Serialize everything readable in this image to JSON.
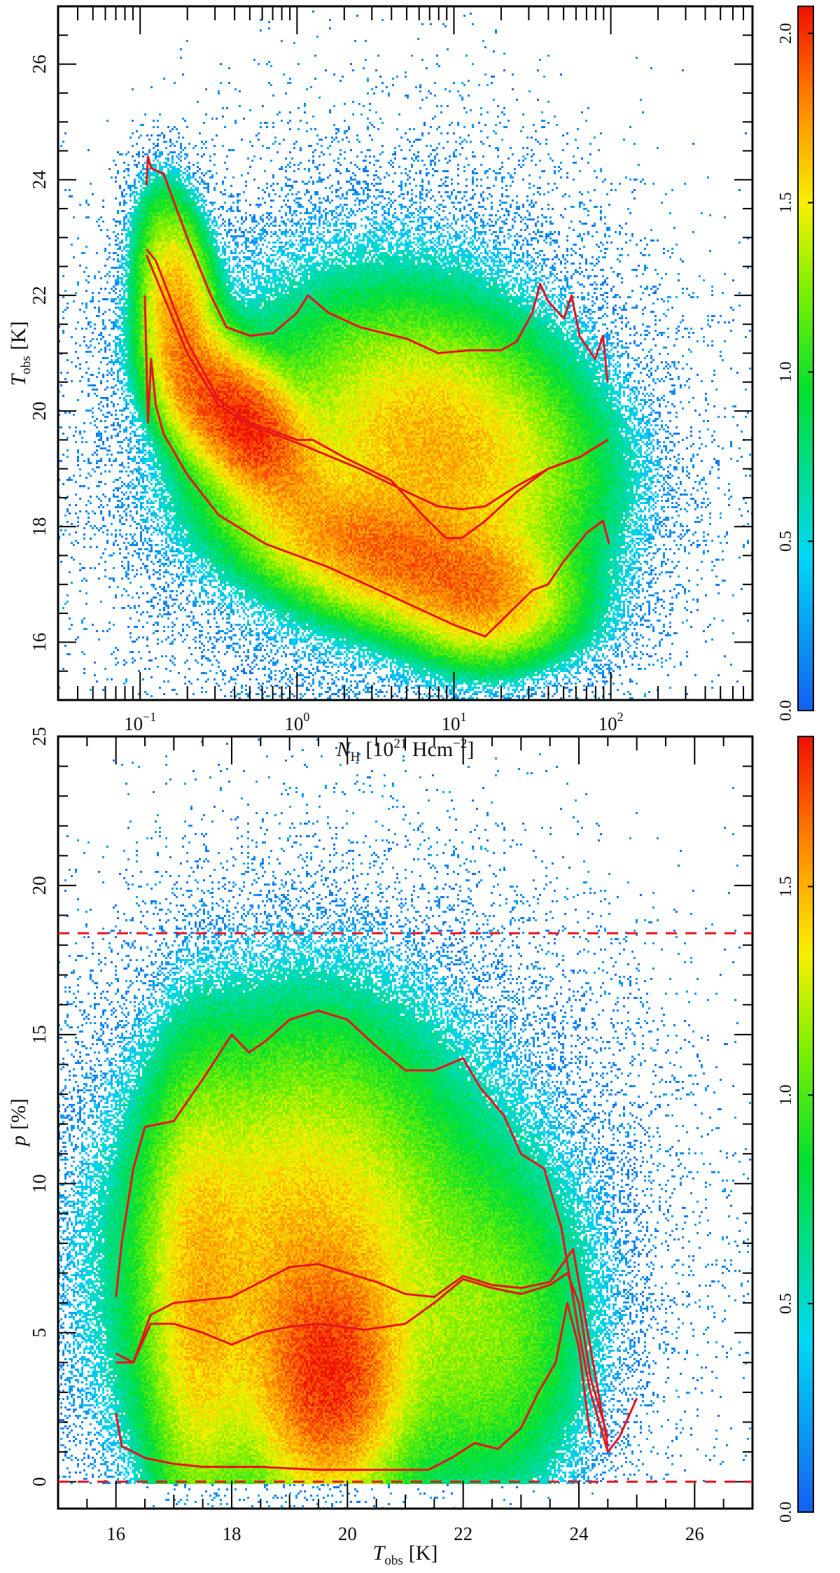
{
  "chart_data": [
    {
      "type": "heatmap",
      "title": "",
      "xscale": "log",
      "xlim": [
        0.03,
        800
      ],
      "ylim": [
        15,
        27
      ],
      "xlabel": {
        "symbol": "N",
        "sub": "H",
        "unit_pre": "[10",
        "unit_sup": "21",
        "unit_mid": " Hcm",
        "unit_sup2": "−2",
        "unit_post": "]"
      },
      "ylabel": {
        "symbol": "T",
        "sub": "obs",
        "unit": "[K]"
      },
      "xticks": [
        {
          "value": 0.1,
          "base": "10",
          "exp": "−1"
        },
        {
          "value": 1,
          "base": "10",
          "exp": "0"
        },
        {
          "value": 10,
          "base": "10",
          "exp": "1"
        },
        {
          "value": 100,
          "base": "10",
          "exp": "2"
        }
      ],
      "yticks": [
        "16",
        "18",
        "20",
        "22",
        "24",
        "26"
      ],
      "colorbar": {
        "range": [
          0,
          2.08
        ],
        "ticks": [
          "0.0",
          "0.5",
          "1.0",
          "1.5",
          "2.0"
        ]
      },
      "density_components_log10x": [
        {
          "x": -0.35,
          "y": 19.8,
          "sx": 0.25,
          "sy": 0.75,
          "rho": -0.55,
          "w": 1.0
        },
        {
          "x": 0.6,
          "y": 17.5,
          "sx": 0.5,
          "sy": 0.7,
          "rho": -0.5,
          "w": 0.55
        },
        {
          "x": -0.75,
          "y": 21.6,
          "sx": 0.13,
          "sy": 1.0,
          "rho": -0.3,
          "w": 0.45
        },
        {
          "x": 0.9,
          "y": 19.3,
          "sx": 0.5,
          "sy": 1.2,
          "rho": -0.2,
          "w": 0.35
        },
        {
          "x": 1.2,
          "y": 16.8,
          "sx": 0.25,
          "sy": 0.6,
          "rho": 0.0,
          "w": 0.3
        },
        {
          "x": 0.5,
          "y": 19.5,
          "sx": 0.8,
          "sy": 2.2,
          "rho": 0.0,
          "w": 0.04
        }
      ],
      "curves": [
        {
          "name": "upper-percentile",
          "log10x": [
            -0.96,
            -0.95,
            -0.93,
            -0.85,
            -0.7,
            -0.55,
            -0.45,
            -0.3,
            -0.15,
            0,
            0.07,
            0.2,
            0.4,
            0.7,
            0.9,
            1.1,
            1.3,
            1.4,
            1.5,
            1.55,
            1.6,
            1.7,
            1.75,
            1.8,
            1.9,
            1.95,
            1.98
          ],
          "y": [
            23.9,
            24.4,
            24.2,
            24.1,
            23.0,
            22.0,
            21.45,
            21.3,
            21.35,
            21.7,
            22.0,
            21.7,
            21.45,
            21.25,
            21.0,
            21.05,
            21.05,
            21.2,
            21.7,
            22.2,
            21.9,
            21.6,
            22.0,
            21.3,
            20.9,
            21.3,
            20.5
          ]
        },
        {
          "name": "median",
          "log10x": [
            -0.96,
            -0.9,
            -0.7,
            -0.5,
            -0.3,
            0,
            0.1,
            0.3,
            0.6,
            0.8,
            0.95,
            1.05,
            1.2,
            1.4,
            1.6,
            1.8,
            1.98
          ],
          "y": [
            22.8,
            22.6,
            21.2,
            20.2,
            19.8,
            19.5,
            19.5,
            19.2,
            18.8,
            18.2,
            17.8,
            17.8,
            18.1,
            18.6,
            19.0,
            19.2,
            19.5
          ]
        },
        {
          "name": "mean",
          "log10x": [
            -0.96,
            -0.7,
            -0.5,
            -0.3,
            0,
            0.4,
            0.7,
            0.9,
            1.05,
            1.2,
            1.4,
            1.6,
            1.8,
            1.98
          ],
          "y": [
            22.7,
            21.0,
            20.1,
            19.75,
            19.45,
            19.0,
            18.6,
            18.35,
            18.3,
            18.35,
            18.7,
            19.0,
            19.2,
            19.5
          ]
        },
        {
          "name": "lower-percentile",
          "log10x": [
            -0.97,
            -0.95,
            -0.93,
            -0.9,
            -0.85,
            -0.7,
            -0.5,
            -0.2,
            0.2,
            0.6,
            1.0,
            1.2,
            1.35,
            1.5,
            1.6,
            1.7,
            1.85,
            1.95,
            1.99
          ],
          "y": [
            22.0,
            19.8,
            20.9,
            20.1,
            19.6,
            18.9,
            18.2,
            17.7,
            17.3,
            16.8,
            16.3,
            16.1,
            16.5,
            16.9,
            17.0,
            17.4,
            17.9,
            18.1,
            17.7
          ]
        }
      ],
      "reference_lines": []
    },
    {
      "type": "heatmap",
      "title": "",
      "xscale": "linear",
      "xlim": [
        15,
        27
      ],
      "ylim": [
        -0.9,
        25
      ],
      "xlabel": {
        "symbol": "T",
        "sub": "obs",
        "unit": "[K]"
      },
      "ylabel": {
        "symbol": "p",
        "unit": "[%]"
      },
      "xticks": [
        "16",
        "18",
        "20",
        "22",
        "24",
        "26"
      ],
      "yticks": [
        "0",
        "5",
        "10",
        "15",
        "20",
        "25"
      ],
      "colorbar": {
        "range": [
          0,
          1.86
        ],
        "ticks": [
          "0.0",
          "0.5",
          "1.0",
          "1.5"
        ]
      },
      "density_components": [
        {
          "x": 19.7,
          "y": 3.5,
          "sx": 0.6,
          "sy": 2.0,
          "rho": 0.0,
          "w": 1.0
        },
        {
          "x": 19.2,
          "y": 7.0,
          "sx": 1.4,
          "sy": 4.0,
          "rho": 0.0,
          "w": 0.45
        },
        {
          "x": 17.4,
          "y": 6.0,
          "sx": 0.45,
          "sy": 4.0,
          "rho": 0.0,
          "w": 0.3
        },
        {
          "x": 22.5,
          "y": 5.0,
          "sx": 0.9,
          "sy": 3.0,
          "rho": 0.0,
          "w": 0.12
        },
        {
          "x": 20.0,
          "y": 8.0,
          "sx": 2.5,
          "sy": 5.5,
          "rho": 0.0,
          "w": 0.035
        }
      ],
      "curves": [
        {
          "name": "upper-percentile",
          "x": [
            16.0,
            16.1,
            16.3,
            16.5,
            17,
            17.5,
            18,
            18.3,
            18.6,
            19,
            19.5,
            20,
            20.5,
            21,
            21.5,
            22,
            22.3,
            22.7,
            23,
            23.4,
            23.7,
            24,
            24.2,
            24.5,
            24.7,
            25
          ],
          "y": [
            6.2,
            8,
            10.5,
            11.9,
            12.1,
            13.5,
            15,
            14.4,
            14.8,
            15.5,
            15.8,
            15.5,
            14.6,
            13.8,
            13.8,
            14.2,
            13.2,
            12.3,
            11,
            10.5,
            8.5,
            5,
            3,
            1.0,
            1.5,
            2.8
          ]
        },
        {
          "name": "mean",
          "x": [
            16,
            16.3,
            16.6,
            17,
            18,
            18.5,
            19,
            19.5,
            20,
            20.5,
            21,
            21.5,
            22,
            22.5,
            23,
            23.5,
            23.9,
            24.2,
            24.5
          ],
          "y": [
            4.3,
            4.0,
            5.6,
            6.0,
            6.2,
            6.7,
            7.2,
            7.3,
            7.0,
            6.7,
            6.3,
            6.2,
            6.9,
            6.6,
            6.5,
            6.7,
            7.8,
            4.5,
            1.2
          ]
        },
        {
          "name": "median",
          "x": [
            16,
            16.3,
            16.6,
            17,
            17.5,
            18,
            18.5,
            19,
            19.5,
            20.3,
            21,
            21.5,
            22,
            22.5,
            23,
            23.5,
            23.8,
            24,
            24.2,
            24.5
          ],
          "y": [
            4.0,
            4.0,
            5.3,
            5.3,
            5.0,
            4.6,
            5.0,
            5.2,
            5.3,
            5.1,
            5.3,
            6.0,
            6.8,
            6.5,
            6.3,
            6.6,
            7.0,
            6.0,
            3.5,
            1.5
          ]
        },
        {
          "name": "lower-percentile",
          "x": [
            16,
            16.1,
            16.5,
            17,
            17.5,
            18.5,
            19.5,
            20.5,
            21.4,
            21.8,
            22.2,
            22.6,
            23,
            23.3,
            23.6,
            23.8,
            24.0,
            24.2
          ],
          "y": [
            2.3,
            1.2,
            0.8,
            0.6,
            0.5,
            0.5,
            0.4,
            0.4,
            0.4,
            0.8,
            1.3,
            1.1,
            1.8,
            3.0,
            4.0,
            6.0,
            4.5,
            1.5
          ]
        }
      ],
      "reference_lines": [
        0,
        18.4
      ]
    }
  ],
  "colors": {
    "curve": "#e8141e",
    "colormap": [
      "#1560f0",
      "#00d8f5",
      "#00e030",
      "#80f000",
      "#f8f000",
      "#ff9000",
      "#f01000"
    ]
  }
}
